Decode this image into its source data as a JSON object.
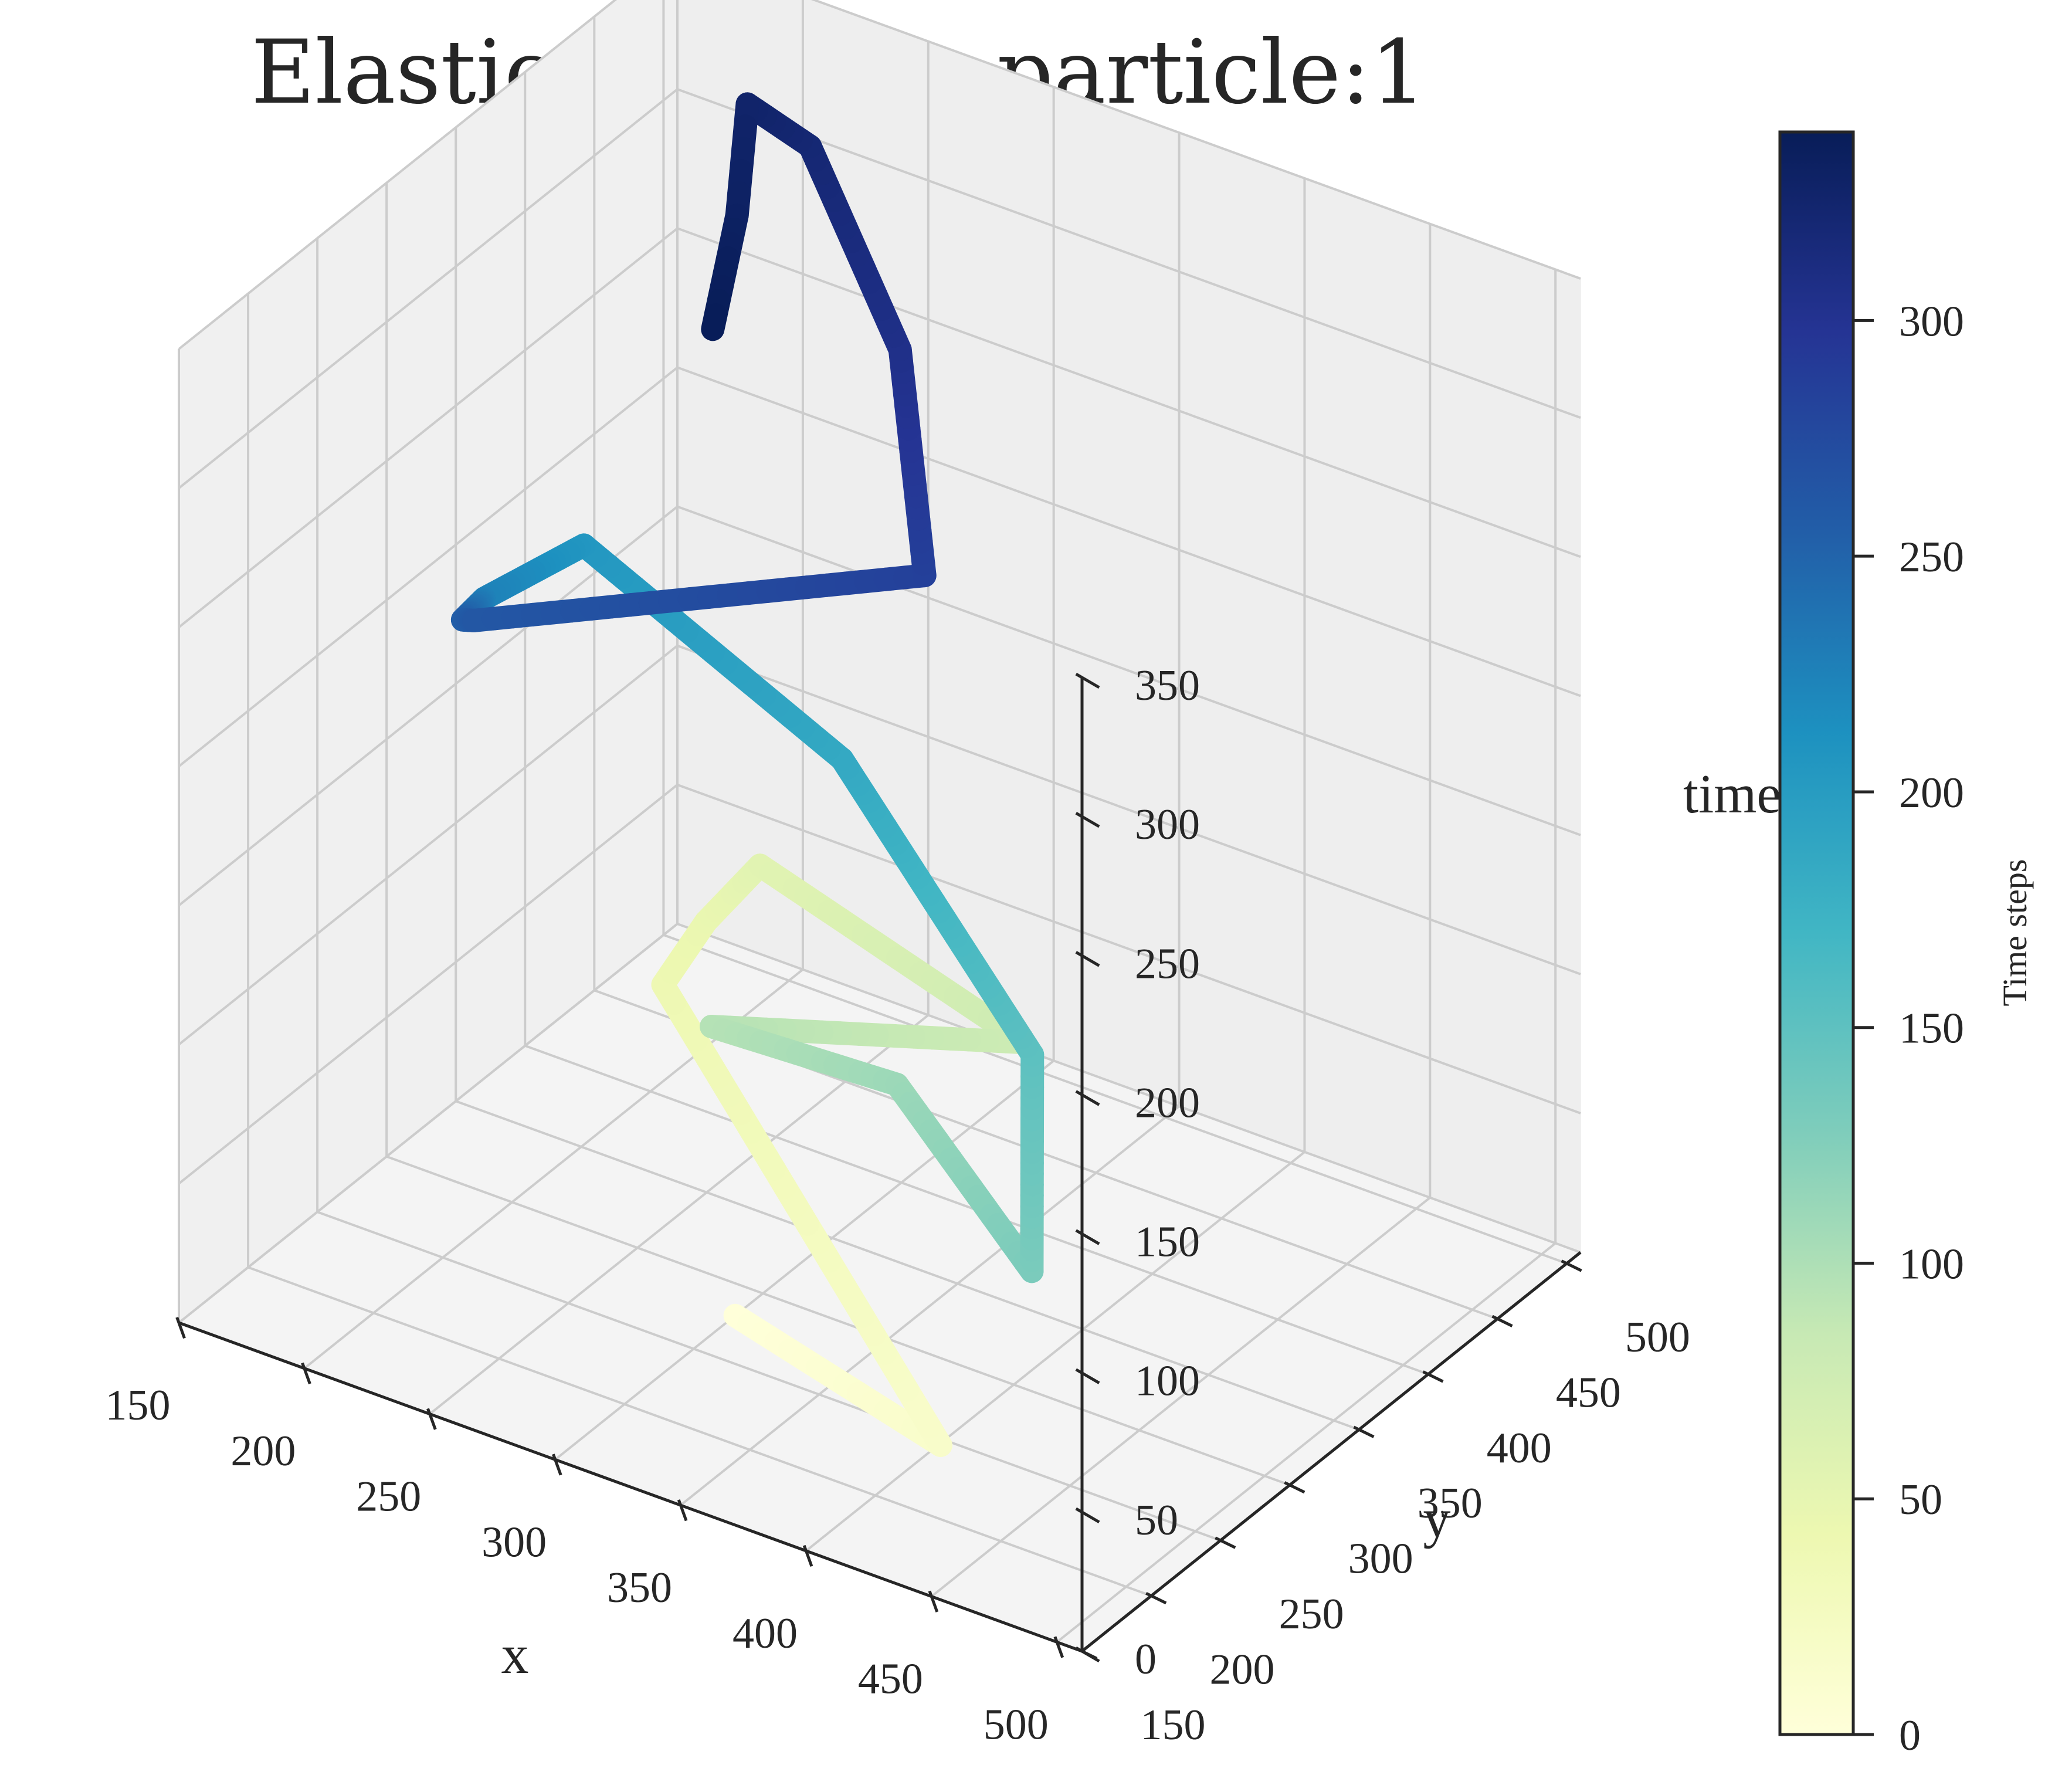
{
  "colors": {
    "pane": "#f2f2f2",
    "grid": "#cccccc",
    "axis": "#262626",
    "text": "#262626",
    "colormap": "YlGnBu",
    "colormap_stops": [
      "#ffffd9",
      "#edf8b1",
      "#c7e9b4",
      "#7fcdbb",
      "#41b6c4",
      "#1d91c0",
      "#225ea8",
      "#253494",
      "#081d58"
    ]
  },
  "chart_data": {
    "type": "line",
    "projection": "3d",
    "title": "Elastic Collision particle:1",
    "xlabel": "x",
    "ylabel": "y",
    "zlabel": "time",
    "xlim": [
      150,
      510
    ],
    "ylim": [
      150,
      510
    ],
    "zlim": [
      0,
      350
    ],
    "xticks": [
      "150",
      "200",
      "250",
      "300",
      "350",
      "400",
      "450",
      "500"
    ],
    "yticks": [
      "150",
      "200",
      "250",
      "300",
      "350",
      "400",
      "450",
      "500"
    ],
    "zticks": [
      "0",
      "50",
      "100",
      "150",
      "200",
      "250",
      "300",
      "350"
    ],
    "colorbar": {
      "label": "Time steps",
      "range": [
        0,
        340
      ],
      "ticks": [
        "0",
        "50",
        "100",
        "150",
        "200",
        "250",
        "300"
      ]
    },
    "series": [
      {
        "points": [
          {
            "t": 0,
            "x": 300,
            "y": 280,
            "z": 0
          },
          {
            "t": 15,
            "x": 415,
            "y": 220,
            "z": 15
          },
          {
            "t": 40,
            "x": 205,
            "y": 400,
            "z": 40
          },
          {
            "t": 45,
            "x": 200,
            "y": 440,
            "z": 45
          },
          {
            "t": 55,
            "x": 205,
            "y": 470,
            "z": 55
          },
          {
            "t": 78,
            "x": 360,
            "y": 380,
            "z": 78
          },
          {
            "t": 95,
            "x": 285,
            "y": 290,
            "z": 95
          },
          {
            "t": 110,
            "x": 370,
            "y": 270,
            "z": 110
          },
          {
            "t": 130,
            "x": 490,
            "y": 150,
            "z": 130
          },
          {
            "t": 150,
            "x": 435,
            "y": 250,
            "z": 150
          },
          {
            "t": 185,
            "x": 315,
            "y": 330,
            "z": 185
          },
          {
            "t": 205,
            "x": 190,
            "y": 370,
            "z": 205
          },
          {
            "t": 225,
            "x": 200,
            "y": 280,
            "z": 225
          },
          {
            "t": 255,
            "x": 230,
            "y": 210,
            "z": 255
          },
          {
            "t": 262,
            "x": 240,
            "y": 200,
            "z": 262
          },
          {
            "t": 285,
            "x": 370,
            "y": 290,
            "z": 285
          },
          {
            "t": 305,
            "x": 305,
            "y": 390,
            "z": 305
          },
          {
            "t": 320,
            "x": 225,
            "y": 470,
            "z": 320
          },
          {
            "t": 327,
            "x": 200,
            "y": 470,
            "z": 327
          },
          {
            "t": 332,
            "x": 240,
            "y": 390,
            "z": 332
          },
          {
            "t": 340,
            "x": 280,
            "y": 300,
            "z": 340
          }
        ]
      }
    ]
  }
}
